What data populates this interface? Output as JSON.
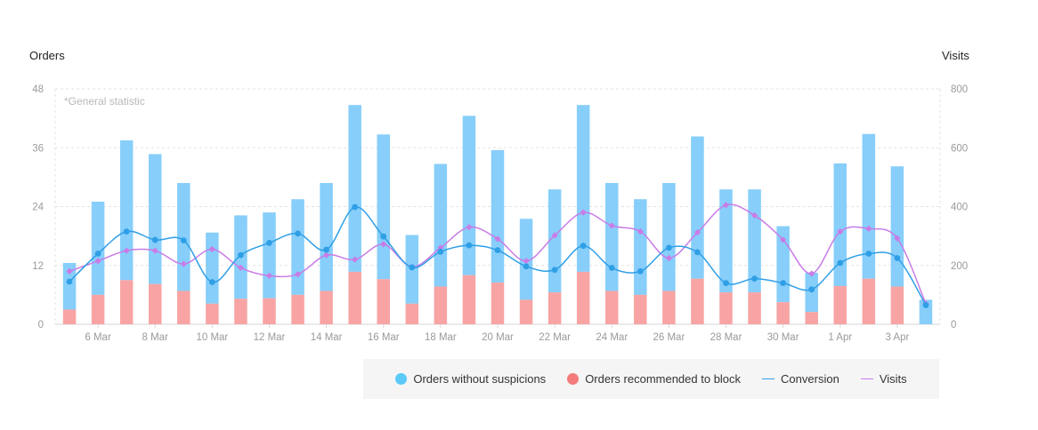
{
  "chart_data": {
    "type": "bar",
    "left_axis_label": "Orders",
    "right_axis_label": "Visits",
    "note": "*General statistic",
    "y_left_ticks": [
      "0",
      "12",
      "24",
      "36",
      "48"
    ],
    "y_right_ticks": [
      "0",
      "200",
      "400",
      "600",
      "800"
    ],
    "ylim_left": [
      0,
      48
    ],
    "ylim_right": [
      0,
      800
    ],
    "grid": true,
    "legend_position": "bottom",
    "x_tick_labels": [
      "6 Mar",
      "8 Mar",
      "10 Mar",
      "12 Mar",
      "14 Mar",
      "16 Mar",
      "18 Mar",
      "20 Mar",
      "22 Mar",
      "24 Mar",
      "26 Mar",
      "28 Mar",
      "30 Mar",
      "1 Apr",
      "3 Apr"
    ],
    "series": [
      {
        "name": "Orders without suspicions",
        "kind": "bar",
        "color": "#87cefa",
        "values": [
          9.5,
          19,
          28.5,
          26.5,
          22,
          14.5,
          17,
          17.5,
          19.5,
          22,
          34,
          29.5,
          14,
          25,
          32.5,
          27,
          16.5,
          21,
          34,
          22,
          19.5,
          22,
          29,
          21,
          21,
          15.5,
          8,
          25,
          29.5,
          24.5,
          5
        ]
      },
      {
        "name": "Orders recommended to block",
        "kind": "bar",
        "color": "#f8a4a4",
        "values": [
          3,
          6,
          9,
          8.2,
          6.8,
          4.2,
          5.2,
          5.3,
          6,
          6.8,
          10.7,
          9.2,
          4.2,
          7.7,
          10,
          8.5,
          5,
          6.5,
          10.7,
          6.8,
          6,
          6.8,
          9.3,
          6.5,
          6.5,
          4.5,
          2.5,
          7.8,
          9.3,
          7.7,
          0
        ]
      },
      {
        "name": "Conversion",
        "kind": "line",
        "color": "#2f9fe6",
        "axis": "left",
        "values": [
          8.7,
          14.4,
          18.9,
          17.2,
          17.1,
          8.6,
          14.1,
          16.6,
          18.5,
          15.2,
          23.9,
          17.9,
          11.6,
          14.8,
          16.1,
          15.1,
          11.8,
          11.1,
          16,
          11.5,
          10.8,
          15.6,
          14.7,
          8.4,
          9.3,
          8.4,
          7.1,
          12.5,
          14.4,
          13.5,
          3.9
        ]
      },
      {
        "name": "Visits",
        "kind": "line",
        "color": "#c87ce6",
        "axis": "right",
        "values": [
          180,
          215,
          250,
          250,
          205,
          255,
          192,
          165,
          170,
          235,
          220,
          272,
          195,
          260,
          330,
          290,
          215,
          302,
          380,
          335,
          315,
          225,
          312,
          405,
          370,
          287,
          172,
          315,
          325,
          292,
          70
        ]
      }
    ]
  }
}
